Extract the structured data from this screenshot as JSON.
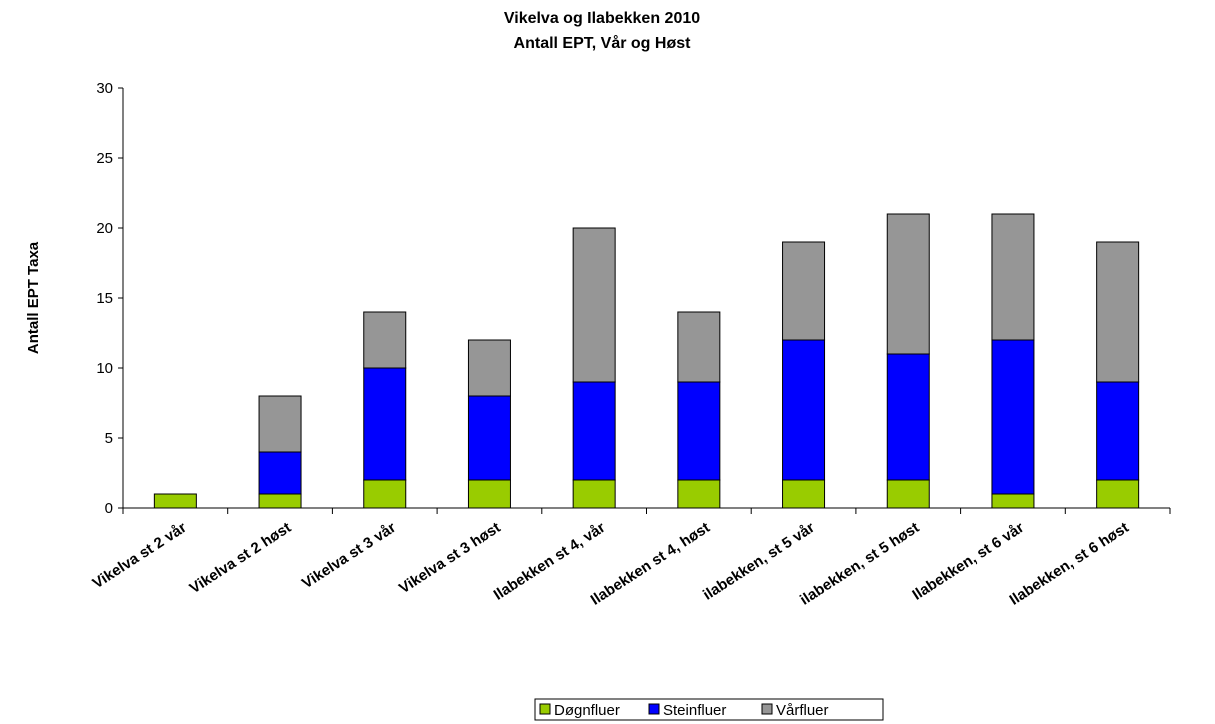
{
  "chart_data": {
    "type": "bar",
    "stacked": true,
    "title": "Vikelva og Ilabekken 2010",
    "subtitle": "Antall EPT, Vår og Høst",
    "xlabel": "",
    "ylabel": "Antall EPT Taxa",
    "ylim": [
      0,
      30
    ],
    "yticks": [
      0,
      5,
      10,
      15,
      20,
      25,
      30
    ],
    "grid": false,
    "legend": "bottom",
    "categories": [
      "Vikelva st 2 vår",
      "Vikelva st 2 høst",
      "Vikelva st 3 vår",
      "Vikelva st 3 høst",
      "Ilabekken st 4, vår",
      "Ilabekken st 4, høst",
      "ilabekken, st 5 vår",
      "ilabekken, st 5 høst",
      "Ilabekken, st 6 vår",
      "Ilabekken, st 6 høst"
    ],
    "series": [
      {
        "name": "Døgnfluer",
        "color": "#99CC00",
        "values": [
          1,
          1,
          2,
          2,
          2,
          2,
          2,
          2,
          1,
          2
        ]
      },
      {
        "name": "Steinfluer",
        "color": "#0000FF",
        "values": [
          0,
          3,
          8,
          6,
          7,
          7,
          10,
          9,
          11,
          7
        ]
      },
      {
        "name": "Vårfluer",
        "color": "#969696",
        "values": [
          0,
          4,
          4,
          4,
          11,
          5,
          7,
          10,
          9,
          10
        ]
      }
    ]
  }
}
